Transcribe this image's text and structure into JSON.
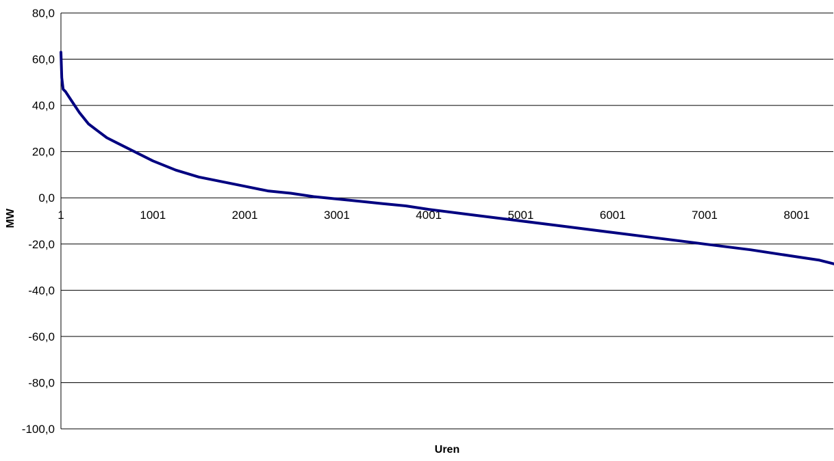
{
  "chart_data": {
    "type": "line",
    "title": "",
    "xlabel": "Uren",
    "ylabel": "MW",
    "ylim": [
      -100,
      80
    ],
    "xlim": [
      1,
      8760
    ],
    "y_ticks": [
      80,
      60,
      40,
      20,
      0,
      -20,
      -40,
      -60,
      -80,
      -100
    ],
    "y_tick_labels": [
      "80,0",
      "60,0",
      "40,0",
      "20,0",
      "0,0",
      "-20,0",
      "-40,0",
      "-60,0",
      "-80,0",
      "-100,0"
    ],
    "x_ticks": [
      1,
      1001,
      2001,
      3001,
      4001,
      5001,
      6001,
      7001,
      8001
    ],
    "x_tick_labels": [
      "1",
      "1001",
      "2001",
      "3001",
      "4001",
      "5001",
      "6001",
      "7001",
      "8001"
    ],
    "grid": "horizontal",
    "legend": "none",
    "series": [
      {
        "color": "#000080",
        "x": [
          1,
          10,
          25,
          50,
          100,
          150,
          200,
          300,
          400,
          500,
          600,
          800,
          1000,
          1250,
          1500,
          1750,
          2000,
          2250,
          2500,
          2750,
          3000,
          3250,
          3500,
          3750,
          4000,
          4500,
          5000,
          5500,
          6000,
          6500,
          7000,
          7500,
          8000,
          8250,
          8500,
          8600,
          8650,
          8700,
          8740,
          8760
        ],
        "y": [
          63,
          52,
          47,
          46,
          43,
          40,
          37,
          32,
          29,
          26,
          24,
          20,
          16,
          12,
          9,
          7,
          5,
          3,
          2,
          0.5,
          -0.5,
          -1.5,
          -2.5,
          -3.5,
          -5,
          -7.5,
          -10,
          -12.5,
          -15,
          -17.5,
          -20,
          -22.5,
          -25.5,
          -27,
          -29.5,
          -31,
          -32,
          -33,
          -35,
          -38
        ]
      }
    ]
  }
}
